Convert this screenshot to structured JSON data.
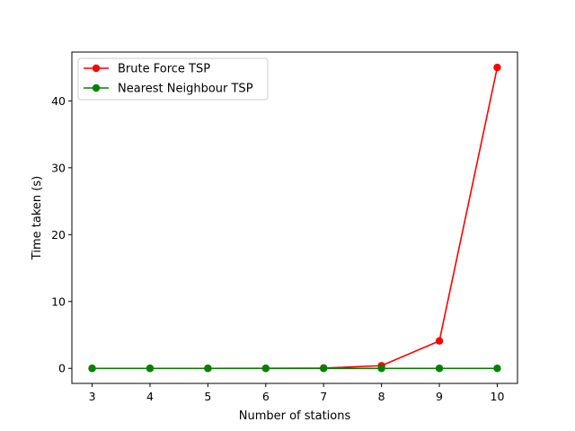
{
  "chart_data": {
    "type": "line",
    "x": [
      3,
      4,
      5,
      6,
      7,
      8,
      9,
      10
    ],
    "xlabel": "Number of stations",
    "ylabel": "Time taken (s)",
    "xlim": [
      2.65,
      10.35
    ],
    "ylim": [
      -2.25,
      47.3
    ],
    "x_ticks": [
      3,
      4,
      5,
      6,
      7,
      8,
      9,
      10
    ],
    "y_ticks": [
      0,
      10,
      20,
      30,
      40
    ],
    "grid": false,
    "legend_position": "top-left",
    "series": [
      {
        "name": "Brute Force TSP",
        "color": "#ff0000",
        "marker": "circle",
        "values": [
          0.0,
          0.0,
          0.0,
          0.01,
          0.05,
          0.4,
          4.1,
          45.0
        ]
      },
      {
        "name": "Nearest Neighbour TSP",
        "color": "#008000",
        "marker": "circle",
        "values": [
          0.0,
          0.0,
          0.0,
          0.0,
          0.0,
          0.0,
          0.0,
          0.0
        ]
      }
    ]
  }
}
